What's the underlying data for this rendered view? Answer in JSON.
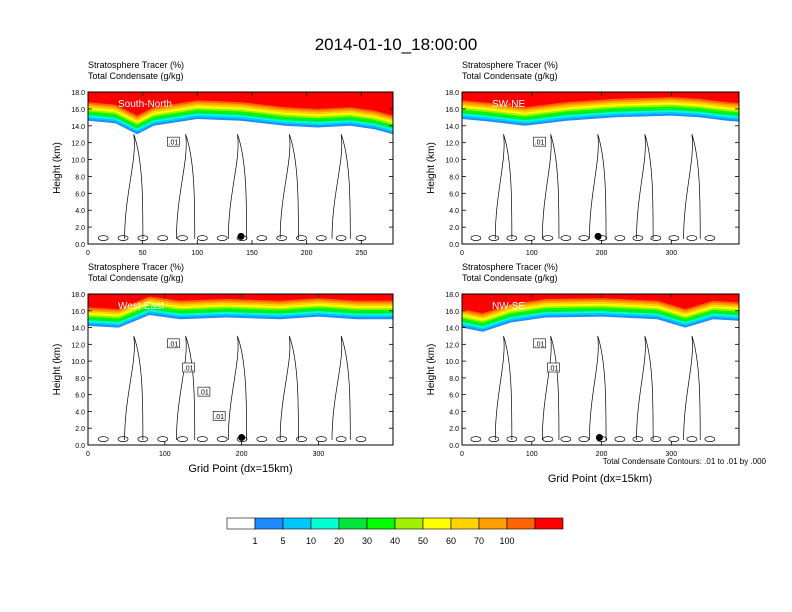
{
  "main_title": "2014-01-10_18:00:00",
  "colorbar": {
    "colors": [
      "#ffffff",
      "#1e8cff",
      "#00c8ff",
      "#00ffd2",
      "#00e63c",
      "#00ff00",
      "#a0f000",
      "#ffff00",
      "#ffd200",
      "#ffa000",
      "#ff6400",
      "#ff0000"
    ],
    "labels": [
      "1",
      "5",
      "10",
      "20",
      "30",
      "40",
      "50",
      "60",
      "70",
      "100"
    ]
  },
  "contour_note": "Total Condensate Contours: .01 to .01 by .000",
  "shared_xlabel": "Grid Point (dx=15km)",
  "chart_data": [
    {
      "type": "heatmap",
      "title_line1": "Stratosphere Tracer   (%)",
      "title_line2": "Total Condensate   (g/kg)",
      "panel_label": "South-North",
      "ylabel": "Height (km)",
      "xlim": [
        0,
        279
      ],
      "ylim": [
        0,
        18
      ],
      "xticks": [
        0,
        50,
        100,
        150,
        200,
        250
      ],
      "yticks": [
        "0.0",
        "2.0",
        "4.0",
        "6.0",
        "8.0",
        "10.0",
        "12.0",
        "14.0",
        "16.0",
        "18.0"
      ],
      "contour_labels": [
        ".01"
      ],
      "marker_x": 140,
      "tracer_band": [
        [
          0,
          14.6
        ],
        [
          25,
          14.3
        ],
        [
          45,
          13.0
        ],
        [
          60,
          14.0
        ],
        [
          100,
          14.8
        ],
        [
          140,
          14.6
        ],
        [
          180,
          14.0
        ],
        [
          210,
          13.8
        ],
        [
          240,
          14.0
        ],
        [
          262,
          13.6
        ],
        [
          279,
          13.0
        ]
      ]
    },
    {
      "type": "heatmap",
      "title_line1": "Stratosphere Tracer   (%)",
      "title_line2": "Total Condensate   (g/kg)",
      "panel_label": "SW-NE",
      "ylabel": "Height (km)",
      "xlim": [
        0,
        397
      ],
      "ylim": [
        0,
        18
      ],
      "xticks": [
        0,
        100,
        200,
        300
      ],
      "yticks": [
        "0.0",
        "2.0",
        "4.0",
        "6.0",
        "8.0",
        "10.0",
        "12.0",
        "14.0",
        "16.0",
        "18.0"
      ],
      "contour_labels": [
        ".01"
      ],
      "marker_x": 195,
      "tracer_band": [
        [
          0,
          14.8
        ],
        [
          40,
          14.5
        ],
        [
          90,
          14.0
        ],
        [
          150,
          14.6
        ],
        [
          220,
          15.0
        ],
        [
          300,
          15.2
        ],
        [
          340,
          15.0
        ],
        [
          380,
          14.6
        ],
        [
          397,
          14.5
        ]
      ]
    },
    {
      "type": "heatmap",
      "title_line1": "Stratosphere Tracer   (%)",
      "title_line2": "Total Condensate   (g/kg)",
      "panel_label": "West-East",
      "ylabel": "Height (km)",
      "xlabel": "Grid Point (dx=15km)",
      "xlim": [
        0,
        397
      ],
      "ylim": [
        0,
        18
      ],
      "xticks": [
        0,
        100,
        200,
        300
      ],
      "yticks": [
        "0.0",
        "2.0",
        "4.0",
        "6.0",
        "8.0",
        "10.0",
        "12.0",
        "14.0",
        "16.0",
        "18.0"
      ],
      "contour_labels": [
        ".01",
        ".01",
        ".01",
        ".01"
      ],
      "marker_x": 200,
      "tracer_band": [
        [
          0,
          14.2
        ],
        [
          40,
          14.0
        ],
        [
          80,
          15.5
        ],
        [
          120,
          15.0
        ],
        [
          180,
          15.2
        ],
        [
          250,
          15.0
        ],
        [
          300,
          15.3
        ],
        [
          350,
          15.0
        ],
        [
          397,
          15.0
        ]
      ]
    },
    {
      "type": "heatmap",
      "title_line1": "Stratosphere Tracer   (%)",
      "title_line2": "Total Condensate   (g/kg)",
      "panel_label": "NW-SE",
      "ylabel": "Height (km)",
      "xlabel": "Grid Point (dx=15km)",
      "xlim": [
        0,
        397
      ],
      "ylim": [
        0,
        18
      ],
      "xticks": [
        0,
        100,
        200,
        300
      ],
      "yticks": [
        "0.0",
        "2.0",
        "4.0",
        "6.0",
        "8.0",
        "10.0",
        "12.0",
        "14.0",
        "16.0",
        "18.0"
      ],
      "contour_labels": [
        ".01",
        ".01"
      ],
      "marker_x": 197,
      "tracer_band": [
        [
          0,
          14.0
        ],
        [
          30,
          13.5
        ],
        [
          70,
          14.6
        ],
        [
          120,
          15.2
        ],
        [
          200,
          15.3
        ],
        [
          280,
          15.0
        ],
        [
          320,
          14.0
        ],
        [
          360,
          15.0
        ],
        [
          397,
          14.8
        ]
      ]
    }
  ]
}
